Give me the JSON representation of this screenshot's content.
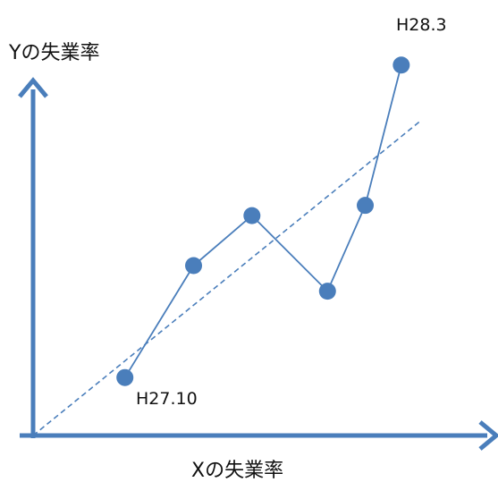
{
  "chart_data": {
    "type": "scatter",
    "title": "",
    "xlabel": "Xの失業率",
    "ylabel": "Yの失業率",
    "points": [
      {
        "x": 1.07,
        "y": 1.02
      },
      {
        "x": 1.87,
        "y": 2.99
      },
      {
        "x": 2.55,
        "y": 3.87
      },
      {
        "x": 3.43,
        "y": 2.54
      },
      {
        "x": 3.87,
        "y": 4.05
      },
      {
        "x": 4.29,
        "y": 6.52
      }
    ],
    "annotations": [
      {
        "text": "H27.10",
        "point_index": 0
      },
      {
        "text": "H28.3",
        "point_index": 5
      }
    ],
    "trendline": {
      "style": "dashed",
      "x": [
        0,
        4.5
      ],
      "y": [
        0,
        5.52
      ]
    },
    "xlim": [
      0,
      5.0
    ],
    "ylim": [
      0,
      6.5
    ],
    "grid": false,
    "ticks": false,
    "colors": {
      "axis": "#4a7ebb",
      "point": "#4a7ebb",
      "line": "#4a7ebb",
      "trend": "#4a7ebb"
    }
  }
}
